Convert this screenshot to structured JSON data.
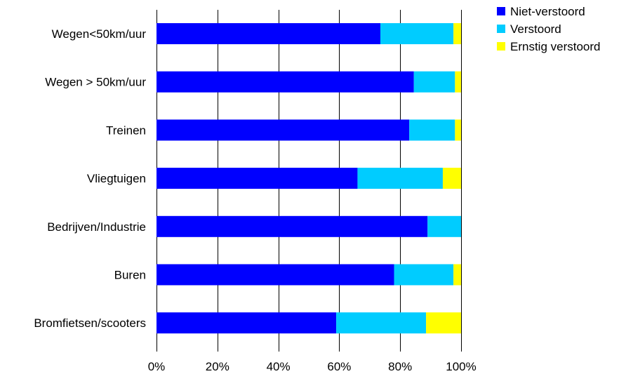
{
  "chart_data": {
    "type": "bar",
    "orientation": "horizontal",
    "stacked": "percent",
    "categories": [
      "Wegen<50km/uur",
      "Wegen > 50km/uur",
      "Treinen",
      "Vliegtuigen",
      "Bedrijven/Industrie",
      "Buren",
      "Bromfietsen/scooters"
    ],
    "series": [
      {
        "name": "Niet-verstoord",
        "color": "#0000FF",
        "values": [
          73.5,
          84.5,
          83,
          66,
          89,
          78,
          59
        ]
      },
      {
        "name": "Verstoord",
        "color": "#00CCFF",
        "values": [
          24,
          13.5,
          15,
          28,
          11,
          19.5,
          29.5
        ]
      },
      {
        "name": "Ernstig verstoord",
        "color": "#FFFF00",
        "values": [
          2.5,
          2,
          2,
          6,
          0,
          2.5,
          11.5
        ]
      }
    ],
    "xlim": [
      0,
      100
    ],
    "xticks": [
      "0%",
      "20%",
      "40%",
      "60%",
      "80%",
      "100%"
    ],
    "grid": "vertical",
    "legend": "top-right",
    "title": "",
    "xlabel": "",
    "ylabel": ""
  }
}
